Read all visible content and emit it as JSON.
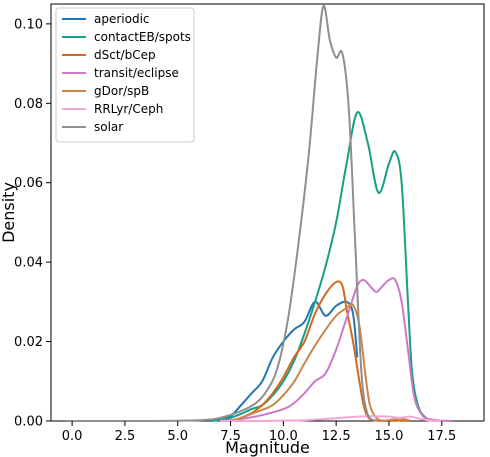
{
  "chart_data": {
    "type": "line",
    "title": "",
    "xlabel": "Magnitude",
    "ylabel": "Density",
    "xlim": [
      -1.0,
      19.5
    ],
    "ylim": [
      0,
      0.105
    ],
    "xticks": [
      0.0,
      2.5,
      5.0,
      7.5,
      10.0,
      12.5,
      15.0,
      17.5
    ],
    "xtick_labels": [
      "0.0",
      "2.5",
      "5.0",
      "7.5",
      "10.0",
      "12.5",
      "15.0",
      "17.5"
    ],
    "yticks": [
      0.0,
      0.02,
      0.04,
      0.06,
      0.08,
      0.1
    ],
    "ytick_labels": [
      "0.00",
      "0.02",
      "0.04",
      "0.06",
      "0.08",
      "0.10"
    ],
    "grid": false,
    "legend_position": "top-left",
    "series": [
      {
        "name": "aperiodic",
        "color": "#1f77b4",
        "points": [
          [
            6.5,
            0.0
          ],
          [
            7.0,
            0.0003
          ],
          [
            7.5,
            0.0012
          ],
          [
            8.0,
            0.004
          ],
          [
            8.5,
            0.007
          ],
          [
            9.0,
            0.01
          ],
          [
            9.5,
            0.016
          ],
          [
            10.0,
            0.02
          ],
          [
            10.5,
            0.023
          ],
          [
            11.0,
            0.025
          ],
          [
            11.5,
            0.03
          ],
          [
            12.0,
            0.0265
          ],
          [
            12.5,
            0.029
          ],
          [
            13.0,
            0.03
          ],
          [
            13.3,
            0.027
          ],
          [
            13.5,
            0.016
          ]
        ]
      },
      {
        "name": "contactEB/spots",
        "color": "#17a085",
        "points": [
          [
            6.5,
            0.0
          ],
          [
            7.0,
            0.0003
          ],
          [
            7.5,
            0.0008
          ],
          [
            8.0,
            0.0018
          ],
          [
            8.5,
            0.003
          ],
          [
            9.0,
            0.004
          ],
          [
            9.5,
            0.0065
          ],
          [
            10.0,
            0.01
          ],
          [
            10.5,
            0.015
          ],
          [
            11.0,
            0.022
          ],
          [
            11.5,
            0.03
          ],
          [
            12.0,
            0.039
          ],
          [
            12.5,
            0.05
          ],
          [
            13.0,
            0.065
          ],
          [
            13.5,
            0.0777
          ],
          [
            14.0,
            0.07
          ],
          [
            14.5,
            0.0575
          ],
          [
            15.0,
            0.0648
          ],
          [
            15.3,
            0.0678
          ],
          [
            15.6,
            0.06
          ],
          [
            15.9,
            0.03
          ],
          [
            16.1,
            0.012
          ],
          [
            16.4,
            0.0035
          ],
          [
            16.8,
            0.0006
          ],
          [
            17.2,
            0.0
          ]
        ]
      },
      {
        "name": "dSct/bCep",
        "color": "#d2691e",
        "points": [
          [
            7.5,
            0.0
          ],
          [
            8.0,
            0.0008
          ],
          [
            8.5,
            0.002
          ],
          [
            9.0,
            0.004
          ],
          [
            9.5,
            0.007
          ],
          [
            10.0,
            0.011
          ],
          [
            10.5,
            0.016
          ],
          [
            11.0,
            0.02
          ],
          [
            11.5,
            0.027
          ],
          [
            12.0,
            0.032
          ],
          [
            12.5,
            0.035
          ],
          [
            12.8,
            0.034
          ],
          [
            13.0,
            0.028
          ],
          [
            13.3,
            0.02
          ],
          [
            13.6,
            0.01
          ],
          [
            13.8,
            0.004
          ],
          [
            14.0,
            0.001
          ],
          [
            14.3,
            0.0002
          ],
          [
            14.8,
            0.0
          ],
          [
            15.5,
            0.0001
          ],
          [
            16.0,
            0.0
          ]
        ]
      },
      {
        "name": "transit/eclipse",
        "color": "#cc79c9",
        "points": [
          [
            7.0,
            0.0
          ],
          [
            8.0,
            0.0005
          ],
          [
            9.0,
            0.0015
          ],
          [
            10.0,
            0.003
          ],
          [
            10.5,
            0.0045
          ],
          [
            11.0,
            0.007
          ],
          [
            11.5,
            0.01
          ],
          [
            12.0,
            0.012
          ],
          [
            12.5,
            0.018
          ],
          [
            13.0,
            0.026
          ],
          [
            13.5,
            0.034
          ],
          [
            13.8,
            0.0355
          ],
          [
            14.1,
            0.034
          ],
          [
            14.4,
            0.0325
          ],
          [
            14.7,
            0.034
          ],
          [
            15.0,
            0.0355
          ],
          [
            15.3,
            0.0355
          ],
          [
            15.6,
            0.03
          ],
          [
            15.9,
            0.018
          ],
          [
            16.2,
            0.006
          ],
          [
            16.6,
            0.0013
          ],
          [
            17.0,
            0.0004
          ],
          [
            17.5,
            0.0001
          ],
          [
            18.0,
            0.0
          ]
        ]
      },
      {
        "name": "gDor/spB",
        "color": "#c8874c",
        "points": [
          [
            7.5,
            0.0
          ],
          [
            8.0,
            0.0008
          ],
          [
            8.5,
            0.0018
          ],
          [
            9.0,
            0.0028
          ],
          [
            9.5,
            0.004
          ],
          [
            10.0,
            0.0065
          ],
          [
            10.5,
            0.0098
          ],
          [
            11.0,
            0.0145
          ],
          [
            11.5,
            0.019
          ],
          [
            12.0,
            0.023
          ],
          [
            12.5,
            0.0265
          ],
          [
            13.0,
            0.0285
          ],
          [
            13.3,
            0.0292
          ],
          [
            13.6,
            0.024
          ],
          [
            13.9,
            0.011
          ],
          [
            14.1,
            0.004
          ],
          [
            14.4,
            0.0008
          ],
          [
            14.8,
            0.0001
          ],
          [
            15.5,
            0.0006
          ],
          [
            16.0,
            0.0001
          ]
        ]
      },
      {
        "name": "RRLyr/Ceph",
        "color": "#f4a7d6",
        "points": [
          [
            7.0,
            0.0
          ],
          [
            9.0,
            0.0
          ],
          [
            10.0,
            0.0001
          ],
          [
            11.0,
            0.0002
          ],
          [
            12.0,
            0.0005
          ],
          [
            13.0,
            0.0009
          ],
          [
            14.0,
            0.0012
          ],
          [
            15.0,
            0.0011
          ],
          [
            15.5,
            0.0008
          ],
          [
            16.0,
            0.0011
          ],
          [
            16.5,
            0.0005
          ],
          [
            17.0,
            0.0001
          ],
          [
            17.5,
            0.0
          ]
        ]
      },
      {
        "name": "solar",
        "color": "#8f8f8f",
        "points": [
          [
            -0.3,
            0.0
          ],
          [
            3.0,
            0.0
          ],
          [
            6.0,
            0.0002
          ],
          [
            7.0,
            0.0008
          ],
          [
            8.0,
            0.0025
          ],
          [
            8.7,
            0.0045
          ],
          [
            9.2,
            0.0075
          ],
          [
            9.7,
            0.013
          ],
          [
            10.2,
            0.025
          ],
          [
            10.7,
            0.044
          ],
          [
            11.2,
            0.067
          ],
          [
            11.6,
            0.091
          ],
          [
            11.9,
            0.1045
          ],
          [
            12.2,
            0.096
          ],
          [
            12.5,
            0.0915
          ],
          [
            12.8,
            0.0925
          ],
          [
            13.1,
            0.0785
          ],
          [
            13.4,
            0.045
          ],
          [
            13.7,
            0.012
          ],
          [
            14.0,
            0.0015
          ],
          [
            14.4,
            0.0
          ]
        ]
      }
    ]
  }
}
